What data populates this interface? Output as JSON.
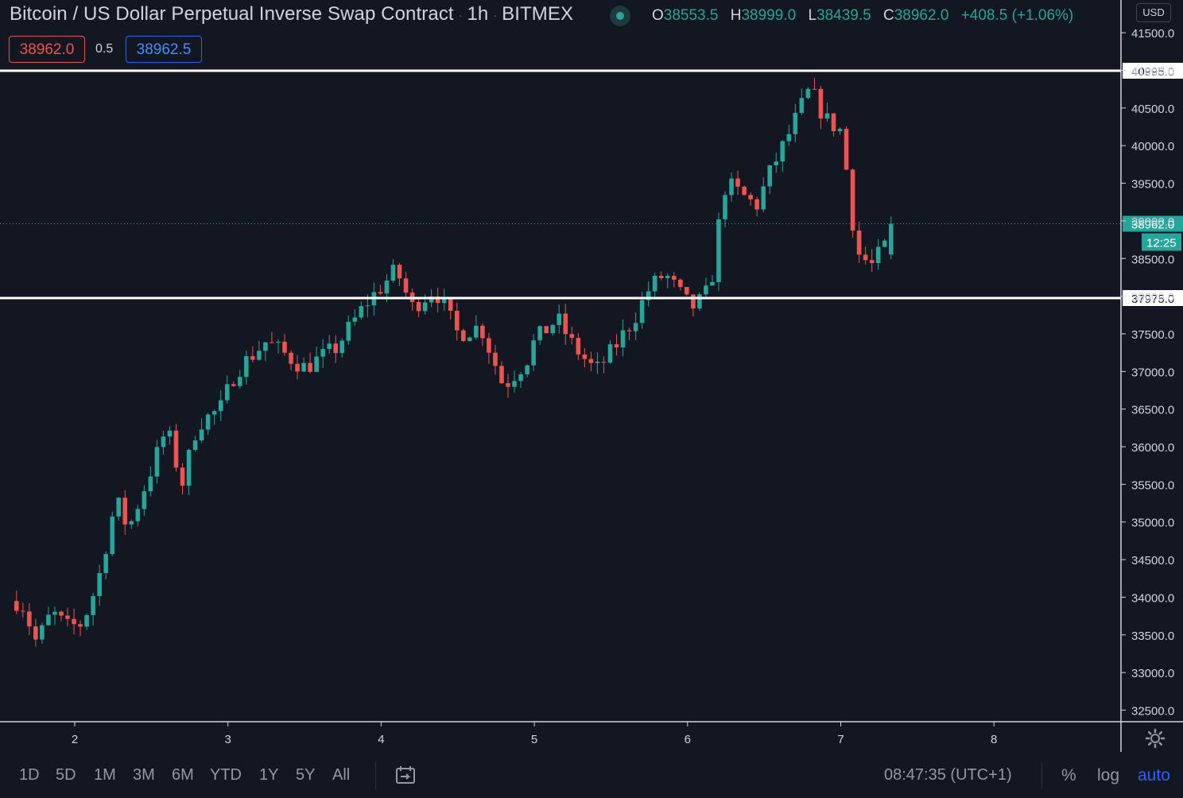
{
  "header": {
    "symbol": "Bitcoin / US Dollar Perpetual Inverse Swap Contract",
    "interval": "1h",
    "exchange": "BITMEX",
    "ohlc": {
      "o_label": "O",
      "o": "38553.5",
      "h_label": "H",
      "h": "38999.0",
      "l_label": "L",
      "l": "38439.5",
      "c_label": "C",
      "c": "38962.0",
      "change": "+408.5 (+1.06%)"
    },
    "sell_price": "38962.0",
    "spread": "0.5",
    "buy_price": "38962.5"
  },
  "price_scale": {
    "currency": "USD",
    "last_price_label": "38962.0",
    "countdown": "12:25"
  },
  "horizontal_lines": [
    {
      "label": "40995.0",
      "price": 40995
    },
    {
      "label": "37975.0",
      "price": 37975
    }
  ],
  "bottom_toolbar": {
    "ranges": [
      "1D",
      "5D",
      "1M",
      "3M",
      "6M",
      "YTD",
      "1Y",
      "5Y",
      "All"
    ],
    "time": "08:47:35 (UTC+1)",
    "percent": "%",
    "log": "log",
    "auto": "auto"
  },
  "colors": {
    "background": "#131722",
    "up": "#26a69a",
    "down": "#ef5350",
    "text": "#d1d4dc",
    "accent": "#2962ff"
  },
  "chart_data": {
    "type": "candlestick",
    "interval": "1h",
    "y_ticks": [
      32500,
      33000,
      33500,
      34000,
      34500,
      35000,
      35500,
      36000,
      36500,
      37000,
      37500,
      38000,
      38500,
      39000,
      39500,
      40000,
      40500,
      41000,
      41500
    ],
    "y_tick_labels": [
      "32500.0",
      "33000.0",
      "33500.0",
      "34000.0",
      "34500.0",
      "35000.0",
      "35500.0",
      "36000.0",
      "36500.0",
      "37000.0",
      "37500.0",
      "38000.0",
      "38500.0",
      "39000.0",
      "39500.0",
      "40000.0",
      "40500.0",
      "41000.0",
      "41500.0"
    ],
    "x_ticks": [
      "2",
      "3",
      "4",
      "5",
      "6",
      "7",
      "8"
    ],
    "last_price": 38962.0,
    "series": [
      {
        "name": "price",
        "keyframes_day_close": [
          [
            1.65,
            33950
          ],
          [
            1.75,
            33400
          ],
          [
            1.85,
            33800
          ],
          [
            1.95,
            33600
          ],
          [
            2.05,
            33650
          ],
          [
            2.15,
            34200
          ],
          [
            2.27,
            35300
          ],
          [
            2.35,
            34900
          ],
          [
            2.5,
            35700
          ],
          [
            2.6,
            36250
          ],
          [
            2.7,
            35500
          ],
          [
            2.8,
            36300
          ],
          [
            2.95,
            36500
          ],
          [
            3.05,
            37000
          ],
          [
            3.25,
            37400
          ],
          [
            3.5,
            37050
          ],
          [
            3.7,
            37300
          ],
          [
            3.9,
            37900
          ],
          [
            4.1,
            38350
          ],
          [
            4.2,
            37850
          ],
          [
            4.35,
            38100
          ],
          [
            4.5,
            37500
          ],
          [
            4.65,
            37600
          ],
          [
            4.8,
            36800
          ],
          [
            4.95,
            37150
          ],
          [
            5.0,
            37400
          ],
          [
            5.15,
            37700
          ],
          [
            5.25,
            37350
          ],
          [
            5.4,
            37000
          ],
          [
            5.5,
            37250
          ],
          [
            5.65,
            37700
          ],
          [
            5.75,
            38100
          ],
          [
            5.85,
            38300
          ],
          [
            6.0,
            37900
          ],
          [
            6.05,
            37850
          ],
          [
            6.15,
            38100
          ],
          [
            6.2,
            38900
          ],
          [
            6.25,
            39500
          ],
          [
            6.35,
            39350
          ],
          [
            6.45,
            39200
          ],
          [
            6.55,
            39700
          ],
          [
            6.65,
            40100
          ],
          [
            6.75,
            40550
          ],
          [
            6.8,
            40750
          ],
          [
            6.9,
            40350
          ],
          [
            7.0,
            40200
          ],
          [
            7.05,
            39500
          ],
          [
            7.1,
            38600
          ],
          [
            7.2,
            38400
          ],
          [
            7.25,
            38550
          ],
          [
            7.3,
            38700
          ],
          [
            7.33,
            38962
          ]
        ]
      }
    ]
  }
}
